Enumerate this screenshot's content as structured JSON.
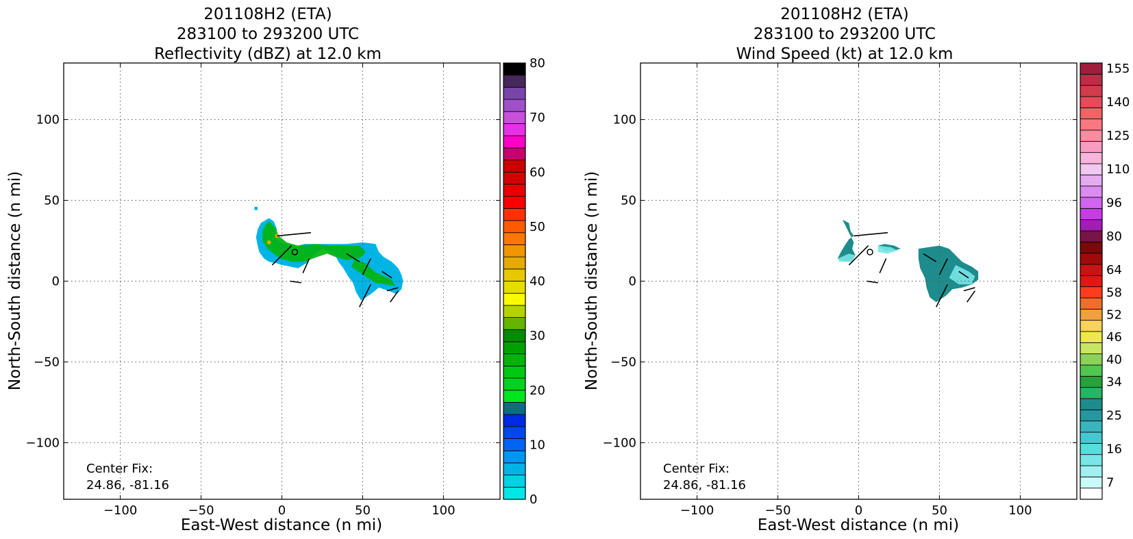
{
  "chart_data": [
    {
      "type": "heatmap",
      "title": [
        "201108H2 (ETA)",
        "283100 to 293200 UTC",
        "Reflectivity (dBZ) at 12.0 km"
      ],
      "xlabel": "East-West distance (n mi)",
      "ylabel": "North-South distance (n mi)",
      "xlim": [
        -135,
        135
      ],
      "ylim": [
        -135,
        135
      ],
      "xticks": [
        -100,
        -50,
        0,
        50,
        100
      ],
      "yticks": [
        -100,
        -50,
        0,
        50,
        100
      ],
      "grid": true,
      "annotation": [
        "Center Fix:",
        "24.86, -81.16"
      ],
      "center_marker": [
        8,
        18
      ],
      "colorbar": {
        "min": 0,
        "max": 80,
        "tick_values": [
          0,
          10,
          20,
          30,
          40,
          50,
          60,
          70,
          80
        ],
        "tick_labels": [
          "0",
          "10",
          "20",
          "30",
          "40",
          "50",
          "60",
          "70",
          "80"
        ],
        "colors": [
          "#00e6e6",
          "#00d2e6",
          "#00b4e6",
          "#0096f0",
          "#0064f5",
          "#0046f5",
          "#002ae6",
          "#0a6e82",
          "#00e61e",
          "#00d21e",
          "#00c814",
          "#00b40a",
          "#00a000",
          "#008c00",
          "#64b400",
          "#b4d200",
          "#fafa00",
          "#e6dc00",
          "#e6c800",
          "#e6aa00",
          "#f09600",
          "#fa7800",
          "#ff5a00",
          "#ff3200",
          "#fa0000",
          "#e60000",
          "#d20000",
          "#c80000",
          "#c8006e",
          "#fa00c8",
          "#e632e6",
          "#c850dc",
          "#a050c8",
          "#7846aa",
          "#46285a",
          "#000000"
        ]
      },
      "field": {
        "description_free": true,
        "polygons": [
          [
            [
              -8,
              39
            ],
            [
              -5,
              37
            ],
            [
              -3,
              32
            ],
            [
              -4,
              27
            ],
            [
              -2,
              25
            ],
            [
              2,
              23
            ],
            [
              6,
              22
            ],
            [
              10,
              22
            ],
            [
              14,
              23
            ],
            [
              20,
              23
            ],
            [
              30,
              23
            ],
            [
              40,
              23
            ],
            [
              50,
              24
            ],
            [
              58,
              23
            ],
            [
              60,
              18
            ],
            [
              63,
              15
            ],
            [
              68,
              12
            ],
            [
              72,
              8
            ],
            [
              74,
              4
            ],
            [
              75,
              0
            ],
            [
              74,
              -5
            ],
            [
              71,
              -8
            ],
            [
              66,
              -6
            ],
            [
              60,
              -4
            ],
            [
              55,
              -8
            ],
            [
              49,
              -12
            ],
            [
              46,
              -7
            ],
            [
              44,
              -1
            ],
            [
              41,
              3
            ],
            [
              38,
              8
            ],
            [
              35,
              12
            ],
            [
              33,
              16
            ],
            [
              29,
              18
            ],
            [
              25,
              20
            ],
            [
              21,
              17
            ],
            [
              15,
              11
            ],
            [
              10,
              8
            ],
            [
              5,
              9
            ],
            [
              0,
              10
            ],
            [
              -3,
              11
            ],
            [
              -8,
              12
            ],
            [
              -11,
              14
            ],
            [
              -14,
              18
            ],
            [
              -15,
              22
            ],
            [
              -16,
              27
            ],
            [
              -15,
              32
            ],
            [
              -13,
              36
            ]
          ],
          [
            [
              -17,
              46
            ],
            [
              -15,
              46
            ],
            [
              -15,
              44
            ],
            [
              -17,
              44
            ]
          ]
        ],
        "fill_value": 2,
        "core_polygons": [
          [
            [
              -8,
              37
            ],
            [
              -4,
              33
            ],
            [
              -2,
              28
            ],
            [
              3,
              24
            ],
            [
              10,
              22
            ],
            [
              20,
              23
            ],
            [
              30,
              22
            ],
            [
              40,
              22
            ],
            [
              48,
              22
            ],
            [
              52,
              18
            ],
            [
              48,
              14
            ],
            [
              40,
              13
            ],
            [
              33,
              15
            ],
            [
              28,
              17
            ],
            [
              22,
              15
            ],
            [
              14,
              12
            ],
            [
              6,
              12
            ],
            [
              -1,
              14
            ],
            [
              -5,
              17
            ],
            [
              -9,
              20
            ],
            [
              -12,
              25
            ],
            [
              -12,
              31
            ],
            [
              -10,
              35
            ]
          ],
          [
            [
              45,
              14
            ],
            [
              52,
              11
            ],
            [
              57,
              6
            ],
            [
              63,
              3
            ],
            [
              68,
              1
            ],
            [
              70,
              -3
            ],
            [
              64,
              -2
            ],
            [
              58,
              -1
            ],
            [
              53,
              2
            ],
            [
              47,
              6
            ],
            [
              43,
              9
            ]
          ]
        ],
        "core_value": 11,
        "hot_points": [
          [
            -3,
            28
          ],
          [
            -8,
            24
          ]
        ],
        "hot_value": 19
      }
    },
    {
      "type": "heatmap",
      "title": [
        "201108H2 (ETA)",
        "283100 to 293200 UTC",
        "Wind Speed (kt) at 12.0 km"
      ],
      "xlabel": "East-West distance (n mi)",
      "ylabel": "North-South distance (n mi)",
      "xlim": [
        -135,
        135
      ],
      "ylim": [
        -135,
        135
      ],
      "xticks": [
        -100,
        -50,
        0,
        50,
        100
      ],
      "yticks": [
        -100,
        -50,
        0,
        50,
        100
      ],
      "grid": true,
      "annotation": [
        "Center Fix:",
        "24.86, -81.16"
      ],
      "center_marker": [
        7,
        18
      ],
      "colorbar": {
        "min": 0,
        "max": 36,
        "tick_values": [
          1,
          5,
          8,
          11,
          14,
          17,
          20,
          23,
          26,
          29,
          32,
          35
        ],
        "tick_labels": [
          "7",
          "16",
          "25",
          "34",
          "40",
          "46",
          "52",
          "58",
          "64",
          "80",
          "96",
          "110",
          "125",
          "140",
          "155"
        ],
        "tick_label_positions": [
          1,
          4,
          7,
          10,
          12,
          14,
          16,
          18,
          20,
          23,
          26,
          29,
          32,
          35,
          38
        ],
        "colors": [
          "#ffffff",
          "#c8fafa",
          "#a0f0f0",
          "#78e6e6",
          "#5adcdc",
          "#46c8d2",
          "#3cb4be",
          "#2896a0",
          "#1e8c8c",
          "#28b464",
          "#28a03c",
          "#50c850",
          "#8cd25a",
          "#c8e664",
          "#f0e650",
          "#fad25a",
          "#f0a03c",
          "#f06e28",
          "#ff3c1e",
          "#e61414",
          "#c81414",
          "#a00a0a",
          "#780a0a",
          "#781446",
          "#a01eb4",
          "#c83ce6",
          "#d264f0",
          "#dc8cf0",
          "#e6aaf0",
          "#f0c8f0",
          "#fab4dc",
          "#fa9bc3",
          "#fa8ca0",
          "#fa7882",
          "#f06464",
          "#e64b5a",
          "#d23c4b",
          "#be2d46",
          "#a01e3c"
        ]
      },
      "field": {
        "polygons": [
          [
            [
              -10,
              38
            ],
            [
              -6,
              36
            ],
            [
              -5,
              31
            ],
            [
              -3,
              28
            ],
            [
              -6,
              26
            ],
            [
              -8,
              23
            ],
            [
              -11,
              18
            ],
            [
              -13,
              14
            ],
            [
              -8,
              12
            ],
            [
              -4,
              13
            ],
            [
              -2,
              16
            ],
            [
              -4,
              20
            ],
            [
              -3,
              24
            ]
          ],
          [
            [
              16,
              23
            ],
            [
              22,
              22
            ],
            [
              26,
              20
            ],
            [
              22,
              19
            ],
            [
              16,
              19
            ],
            [
              12,
              22
            ]
          ],
          [
            [
              37,
              20
            ],
            [
              43,
              21
            ],
            [
              50,
              22
            ],
            [
              56,
              20
            ],
            [
              60,
              16
            ],
            [
              64,
              12
            ],
            [
              70,
              9
            ],
            [
              74,
              6
            ],
            [
              74,
              1
            ],
            [
              70,
              -2
            ],
            [
              64,
              -4
            ],
            [
              58,
              -5
            ],
            [
              54,
              -9
            ],
            [
              48,
              -13
            ],
            [
              44,
              -10
            ],
            [
              42,
              -4
            ],
            [
              41,
              2
            ],
            [
              38,
              8
            ],
            [
              37,
              14
            ]
          ]
        ],
        "fill_value": 8,
        "light_polygons": [
          [
            [
              -13,
              14
            ],
            [
              -12,
              12
            ],
            [
              -4,
              12
            ],
            [
              -2,
              16
            ],
            [
              -6,
              17
            ]
          ],
          [
            [
              12,
              22
            ],
            [
              20,
              21
            ],
            [
              24,
              19
            ],
            [
              18,
              17
            ],
            [
              12,
              18
            ]
          ],
          [
            [
              60,
              10
            ],
            [
              68,
              6
            ],
            [
              72,
              3
            ],
            [
              70,
              -2
            ],
            [
              62,
              -2
            ],
            [
              56,
              2
            ]
          ]
        ],
        "light_value": 3
      }
    }
  ]
}
